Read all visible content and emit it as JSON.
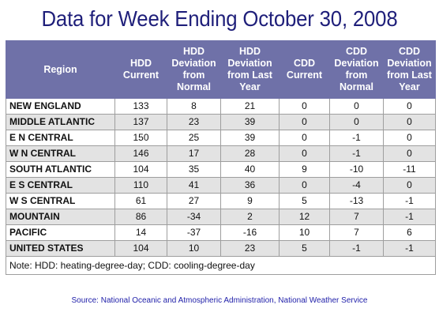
{
  "title": "Data for Week Ending October 30, 2008",
  "headers": {
    "region": "Region",
    "hdd_current": "HDD Current",
    "hdd_dev_normal": "HDD Deviation from Normal",
    "hdd_dev_last_year": "HDD Deviation from Last Year",
    "cdd_current": "CDD Current",
    "cdd_dev_normal": "CDD Deviation from Normal",
    "cdd_dev_last_year": "CDD Deviation from Last Year"
  },
  "rows": [
    {
      "region": "NEW ENGLAND",
      "hdd_current": "133",
      "hdd_dev_normal": "8",
      "hdd_dev_last_year": "21",
      "cdd_current": "0",
      "cdd_dev_normal": "0",
      "cdd_dev_last_year": "0"
    },
    {
      "region": "MIDDLE ATLANTIC",
      "hdd_current": "137",
      "hdd_dev_normal": "23",
      "hdd_dev_last_year": "39",
      "cdd_current": "0",
      "cdd_dev_normal": "0",
      "cdd_dev_last_year": "0"
    },
    {
      "region": "E N CENTRAL",
      "hdd_current": "150",
      "hdd_dev_normal": "25",
      "hdd_dev_last_year": "39",
      "cdd_current": "0",
      "cdd_dev_normal": "-1",
      "cdd_dev_last_year": "0"
    },
    {
      "region": "W N CENTRAL",
      "hdd_current": "146",
      "hdd_dev_normal": "17",
      "hdd_dev_last_year": "28",
      "cdd_current": "0",
      "cdd_dev_normal": "-1",
      "cdd_dev_last_year": "0"
    },
    {
      "region": "SOUTH ATLANTIC",
      "hdd_current": "104",
      "hdd_dev_normal": "35",
      "hdd_dev_last_year": "40",
      "cdd_current": "9",
      "cdd_dev_normal": "-10",
      "cdd_dev_last_year": "-11"
    },
    {
      "region": "E S CENTRAL",
      "hdd_current": "110",
      "hdd_dev_normal": "41",
      "hdd_dev_last_year": "36",
      "cdd_current": "0",
      "cdd_dev_normal": "-4",
      "cdd_dev_last_year": "0"
    },
    {
      "region": "W S CENTRAL",
      "hdd_current": "61",
      "hdd_dev_normal": "27",
      "hdd_dev_last_year": "9",
      "cdd_current": "5",
      "cdd_dev_normal": "-13",
      "cdd_dev_last_year": "-1"
    },
    {
      "region": "MOUNTAIN",
      "hdd_current": "86",
      "hdd_dev_normal": "-34",
      "hdd_dev_last_year": "2",
      "cdd_current": "12",
      "cdd_dev_normal": "7",
      "cdd_dev_last_year": "-1"
    },
    {
      "region": "PACIFIC",
      "hdd_current": "14",
      "hdd_dev_normal": "-37",
      "hdd_dev_last_year": "-16",
      "cdd_current": "10",
      "cdd_dev_normal": "7",
      "cdd_dev_last_year": "6"
    },
    {
      "region": "UNITED STATES",
      "hdd_current": "104",
      "hdd_dev_normal": "10",
      "hdd_dev_last_year": "23",
      "cdd_current": "5",
      "cdd_dev_normal": "-1",
      "cdd_dev_last_year": "-1"
    }
  ],
  "note": "Note: HDD: heating-degree-day; CDD: cooling-degree-day",
  "source": "Source:  National Oceanic and Atmospheric Administration, National Weather Service",
  "colors": {
    "header_bg": "#6f71a8",
    "alt_row_bg": "#e3e3e3",
    "title": "#1f1f7a",
    "source": "#2222aa"
  }
}
